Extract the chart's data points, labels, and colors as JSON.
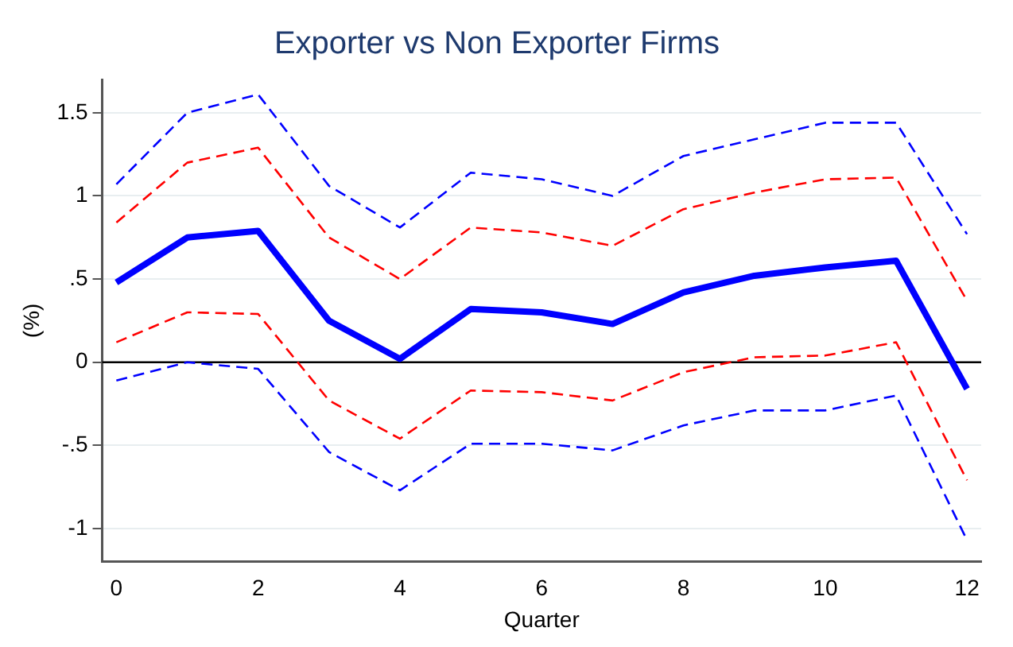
{
  "chart_data": {
    "type": "line",
    "title": "Exporter vs Non Exporter Firms",
    "xlabel": "Quarter",
    "ylabel": "(%)",
    "x": [
      0,
      1,
      2,
      3,
      4,
      5,
      6,
      7,
      8,
      9,
      10,
      11,
      12
    ],
    "series": [
      {
        "color": "#0000ff",
        "line_style": "dashed",
        "values": [
          1.07,
          1.5,
          1.61,
          1.06,
          0.81,
          1.14,
          1.1,
          1.0,
          1.24,
          1.34,
          1.44,
          1.44,
          0.77
        ]
      },
      {
        "color": "#ff0000",
        "line_style": "dashed",
        "values": [
          0.84,
          1.2,
          1.29,
          0.75,
          0.5,
          0.81,
          0.78,
          0.7,
          0.92,
          1.02,
          1.1,
          1.11,
          0.37
        ]
      },
      {
        "color": "#0000ff",
        "line_style": "solid",
        "values": [
          0.48,
          0.75,
          0.79,
          0.25,
          0.02,
          0.32,
          0.3,
          0.23,
          0.42,
          0.52,
          0.57,
          0.61,
          -0.16
        ]
      },
      {
        "color": "#ff0000",
        "line_style": "dashed",
        "values": [
          0.12,
          0.3,
          0.29,
          -0.23,
          -0.46,
          -0.17,
          -0.18,
          -0.23,
          -0.06,
          0.03,
          0.04,
          0.12,
          -0.71
        ]
      },
      {
        "color": "#0000ff",
        "line_style": "dashed",
        "values": [
          -0.11,
          0.0,
          -0.04,
          -0.54,
          -0.77,
          -0.49,
          -0.49,
          -0.53,
          -0.38,
          -0.29,
          -0.29,
          -0.2,
          -1.07
        ]
      }
    ],
    "xlim": [
      -0.2,
      12.2
    ],
    "xticks": [
      0,
      2,
      4,
      6,
      8,
      10,
      12
    ],
    "ylim": [
      -1.2,
      1.7
    ],
    "yticks": [
      {
        "value": -1,
        "label": "-1"
      },
      {
        "value": -0.5,
        "label": "-.5"
      },
      0,
      {
        "value": 0.5,
        "label": ".5"
      },
      1,
      1.5
    ],
    "grid": "y",
    "legend": false,
    "marker": "none",
    "ref_lines": [
      {
        "axis": "y",
        "value": 0,
        "color": "#000000"
      }
    ]
  }
}
